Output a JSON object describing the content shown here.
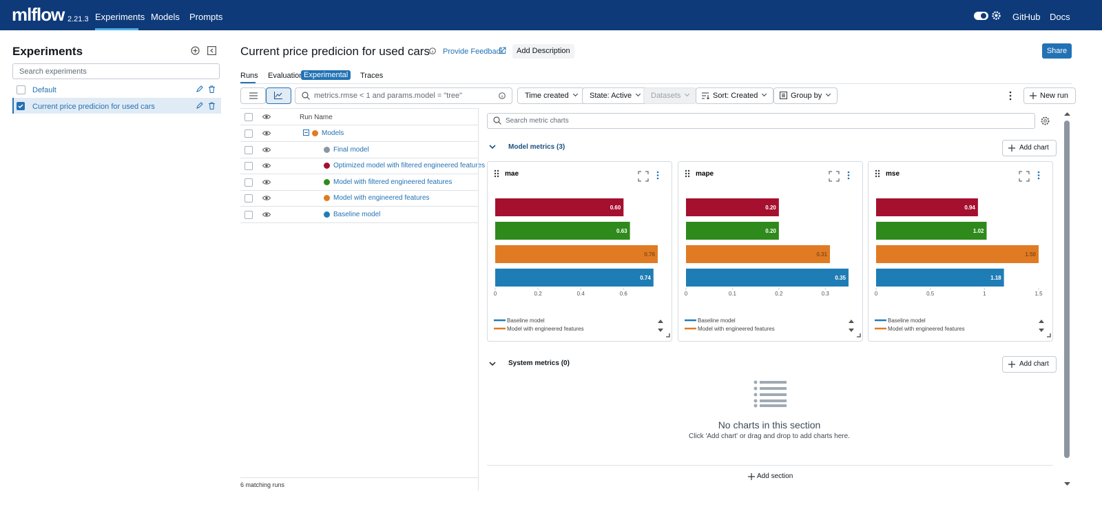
{
  "nav": {
    "logo": "mlflow",
    "version": "2.21.3",
    "tabs": [
      "Experiments",
      "Models",
      "Prompts"
    ],
    "links": [
      "GitHub",
      "Docs"
    ]
  },
  "sidebar": {
    "title": "Experiments",
    "search_placeholder": "Search experiments",
    "experiments": [
      "Default",
      "Current price predicion for used cars"
    ]
  },
  "header": {
    "title": "Current price predicion for used cars",
    "feedback": "Provide Feedback",
    "add_description": "Add Description",
    "share": "Share"
  },
  "tabs": {
    "runs": "Runs",
    "evaluation": "Evaluation",
    "badge": "Experimental",
    "traces": "Traces"
  },
  "toolbar": {
    "query": "metrics.rmse < 1 and params.model = \"tree\"",
    "time": "Time created",
    "state": "State: Active",
    "datasets": "Datasets",
    "sort": "Sort: Created",
    "group": "Group by",
    "new_run": "New run"
  },
  "runs_table": {
    "header": "Run Name",
    "rows": [
      {
        "name": "Models",
        "color": "#e07b24"
      },
      {
        "name": "Final model",
        "color": "#8c96a3"
      },
      {
        "name": "Optimized model with filtered engineered features",
        "color": "#a5102f"
      },
      {
        "name": "Model with filtered engineered features",
        "color": "#2f8a1c"
      },
      {
        "name": "Model with engineered features",
        "color": "#e07b24"
      },
      {
        "name": "Baseline model",
        "color": "#1f7db5"
      }
    ],
    "footer": "6 matching runs"
  },
  "metrics": {
    "search": "Search metric charts",
    "section": "Model metrics (3)",
    "add_chart": "Add chart",
    "charts": [
      {
        "type": "bar",
        "title": "mae",
        "values": [
          0.6,
          0.63,
          0.76,
          0.74
        ],
        "value_labels": [
          "0.60",
          "0.63",
          "0.76",
          "0.74"
        ],
        "xlim": [
          0,
          0.76
        ],
        "xticks": [
          0,
          0.2,
          0.4,
          0.6
        ]
      },
      {
        "type": "bar",
        "title": "mape",
        "values": [
          0.2,
          0.2,
          0.31,
          0.35
        ],
        "value_labels": [
          "0.20",
          "0.20",
          "0.31",
          "0.35"
        ],
        "xlim": [
          0,
          0.35
        ],
        "xticks": [
          0,
          0.1,
          0.2,
          0.3
        ]
      },
      {
        "type": "bar",
        "title": "mse",
        "values": [
          0.94,
          1.02,
          1.5,
          1.18
        ],
        "value_labels": [
          "0.94",
          "1.02",
          "1.50",
          "1.18"
        ],
        "xlim": [
          0,
          1.5
        ],
        "xticks": [
          0,
          0.5,
          1,
          1.5
        ]
      }
    ],
    "system_section": "System metrics (0)",
    "empty_title": "No charts in this section",
    "empty_text": "Click 'Add chart' or drag and drop to add charts here.",
    "add_section": "Add section"
  }
}
